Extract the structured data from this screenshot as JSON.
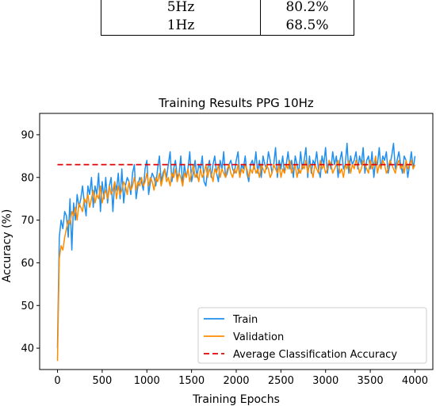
{
  "table": {
    "rows": [
      {
        "rate": "5Hz",
        "accuracy": "80.2%"
      },
      {
        "rate": "1Hz",
        "accuracy": "68.5%"
      }
    ]
  },
  "chart_data": {
    "type": "line",
    "title": "Training Results PPG 10Hz",
    "xlabel": "Training Epochs",
    "ylabel": "Accuracy (%)",
    "xlim": [
      -200,
      4200
    ],
    "ylim": [
      35,
      95
    ],
    "xticks": [
      0,
      500,
      1000,
      1500,
      2000,
      2500,
      3000,
      3500,
      4000
    ],
    "yticks": [
      40,
      50,
      60,
      70,
      80,
      90
    ],
    "grid": false,
    "legend_position": "lower-right",
    "colors": {
      "train": "#1f8ff0",
      "validation": "#ff8c00",
      "average": "#e00000"
    },
    "series": [
      {
        "name": "Train",
        "style": "solid",
        "x_start": 0,
        "x_step": 20,
        "values": [
          40,
          66,
          70,
          68,
          72,
          71,
          66,
          75,
          63,
          74,
          70,
          76,
          73,
          75,
          78,
          74,
          71,
          78,
          76,
          80,
          73,
          78,
          76,
          81,
          72,
          79,
          75,
          80,
          74,
          78,
          80,
          72,
          79,
          77,
          81,
          75,
          82,
          74,
          78,
          80,
          79,
          76,
          81,
          83,
          75,
          78,
          80,
          79,
          77,
          82,
          84,
          76,
          79,
          81,
          80,
          78,
          82,
          85,
          79,
          81,
          82,
          80,
          83,
          86,
          79,
          82,
          84,
          80,
          81,
          85,
          78,
          83,
          80,
          82,
          86,
          79,
          81,
          84,
          80,
          83,
          82,
          85,
          79,
          78,
          82,
          84,
          80,
          83,
          85,
          81,
          79,
          84,
          82,
          86,
          80,
          81,
          83,
          84,
          82,
          81,
          84,
          86,
          80,
          83,
          82,
          85,
          81,
          79,
          83,
          84,
          82,
          86,
          81,
          84,
          80,
          85,
          83,
          82,
          86,
          84,
          81,
          83,
          87,
          80,
          84,
          82,
          85,
          81,
          83,
          86,
          82,
          84,
          80,
          85,
          83,
          81,
          86,
          82,
          84,
          87,
          80,
          85,
          81,
          84,
          83,
          86,
          82,
          80,
          85,
          83,
          87,
          81,
          84,
          82,
          86,
          83,
          85,
          80,
          84,
          86,
          82,
          83,
          88,
          81,
          85,
          83,
          84,
          86,
          82,
          85,
          83,
          87,
          81,
          84,
          85,
          82,
          86,
          80,
          84,
          83,
          87,
          82,
          85,
          84,
          86,
          81,
          83,
          85,
          88,
          82,
          84,
          86,
          83,
          81,
          85,
          84,
          80,
          83,
          86,
          82,
          85
        ]
      },
      {
        "name": "Validation",
        "style": "solid",
        "x_start": 0,
        "x_step": 20,
        "values": [
          37,
          61,
          64,
          63,
          66,
          68,
          70,
          69,
          72,
          71,
          73,
          70,
          74,
          73,
          72,
          75,
          74,
          76,
          73,
          75,
          77,
          74,
          76,
          75,
          78,
          74,
          76,
          77,
          75,
          78,
          76,
          77,
          79,
          75,
          78,
          76,
          77,
          79,
          78,
          76,
          79,
          77,
          78,
          80,
          77,
          79,
          78,
          80,
          78,
          79,
          81,
          78,
          80,
          79,
          77,
          80,
          79,
          81,
          78,
          80,
          82,
          79,
          80,
          78,
          81,
          80,
          82,
          79,
          81,
          80,
          78,
          81,
          80,
          82,
          79,
          81,
          83,
          80,
          81,
          79,
          82,
          80,
          81,
          83,
          80,
          82,
          81,
          79,
          82,
          81,
          83,
          80,
          82,
          81,
          80,
          82,
          83,
          81,
          80,
          82,
          81,
          83,
          80,
          82,
          81,
          83,
          82,
          80,
          82,
          81,
          83,
          81,
          82,
          80,
          83,
          82,
          81,
          83,
          82,
          80,
          81,
          83,
          82,
          81,
          83,
          80,
          82,
          81,
          83,
          82,
          84,
          81,
          82,
          83,
          80,
          82,
          81,
          83,
          82,
          84,
          81,
          83,
          82,
          80,
          83,
          82,
          81,
          84,
          82,
          83,
          81,
          82,
          84,
          83,
          81,
          82,
          83,
          84,
          81,
          82,
          80,
          83,
          82,
          84,
          81,
          83,
          82,
          84,
          83,
          81,
          82,
          84,
          83,
          82,
          81,
          84,
          82,
          83,
          85,
          81,
          83,
          82,
          84,
          83,
          81,
          82,
          84,
          83,
          82,
          81,
          83,
          84,
          82,
          83,
          81,
          84,
          82,
          83,
          84,
          82,
          83
        ]
      },
      {
        "name": "Average Classification Accuracy",
        "style": "dashed",
        "x": [
          0,
          4000
        ],
        "values": [
          83,
          83
        ]
      }
    ]
  }
}
